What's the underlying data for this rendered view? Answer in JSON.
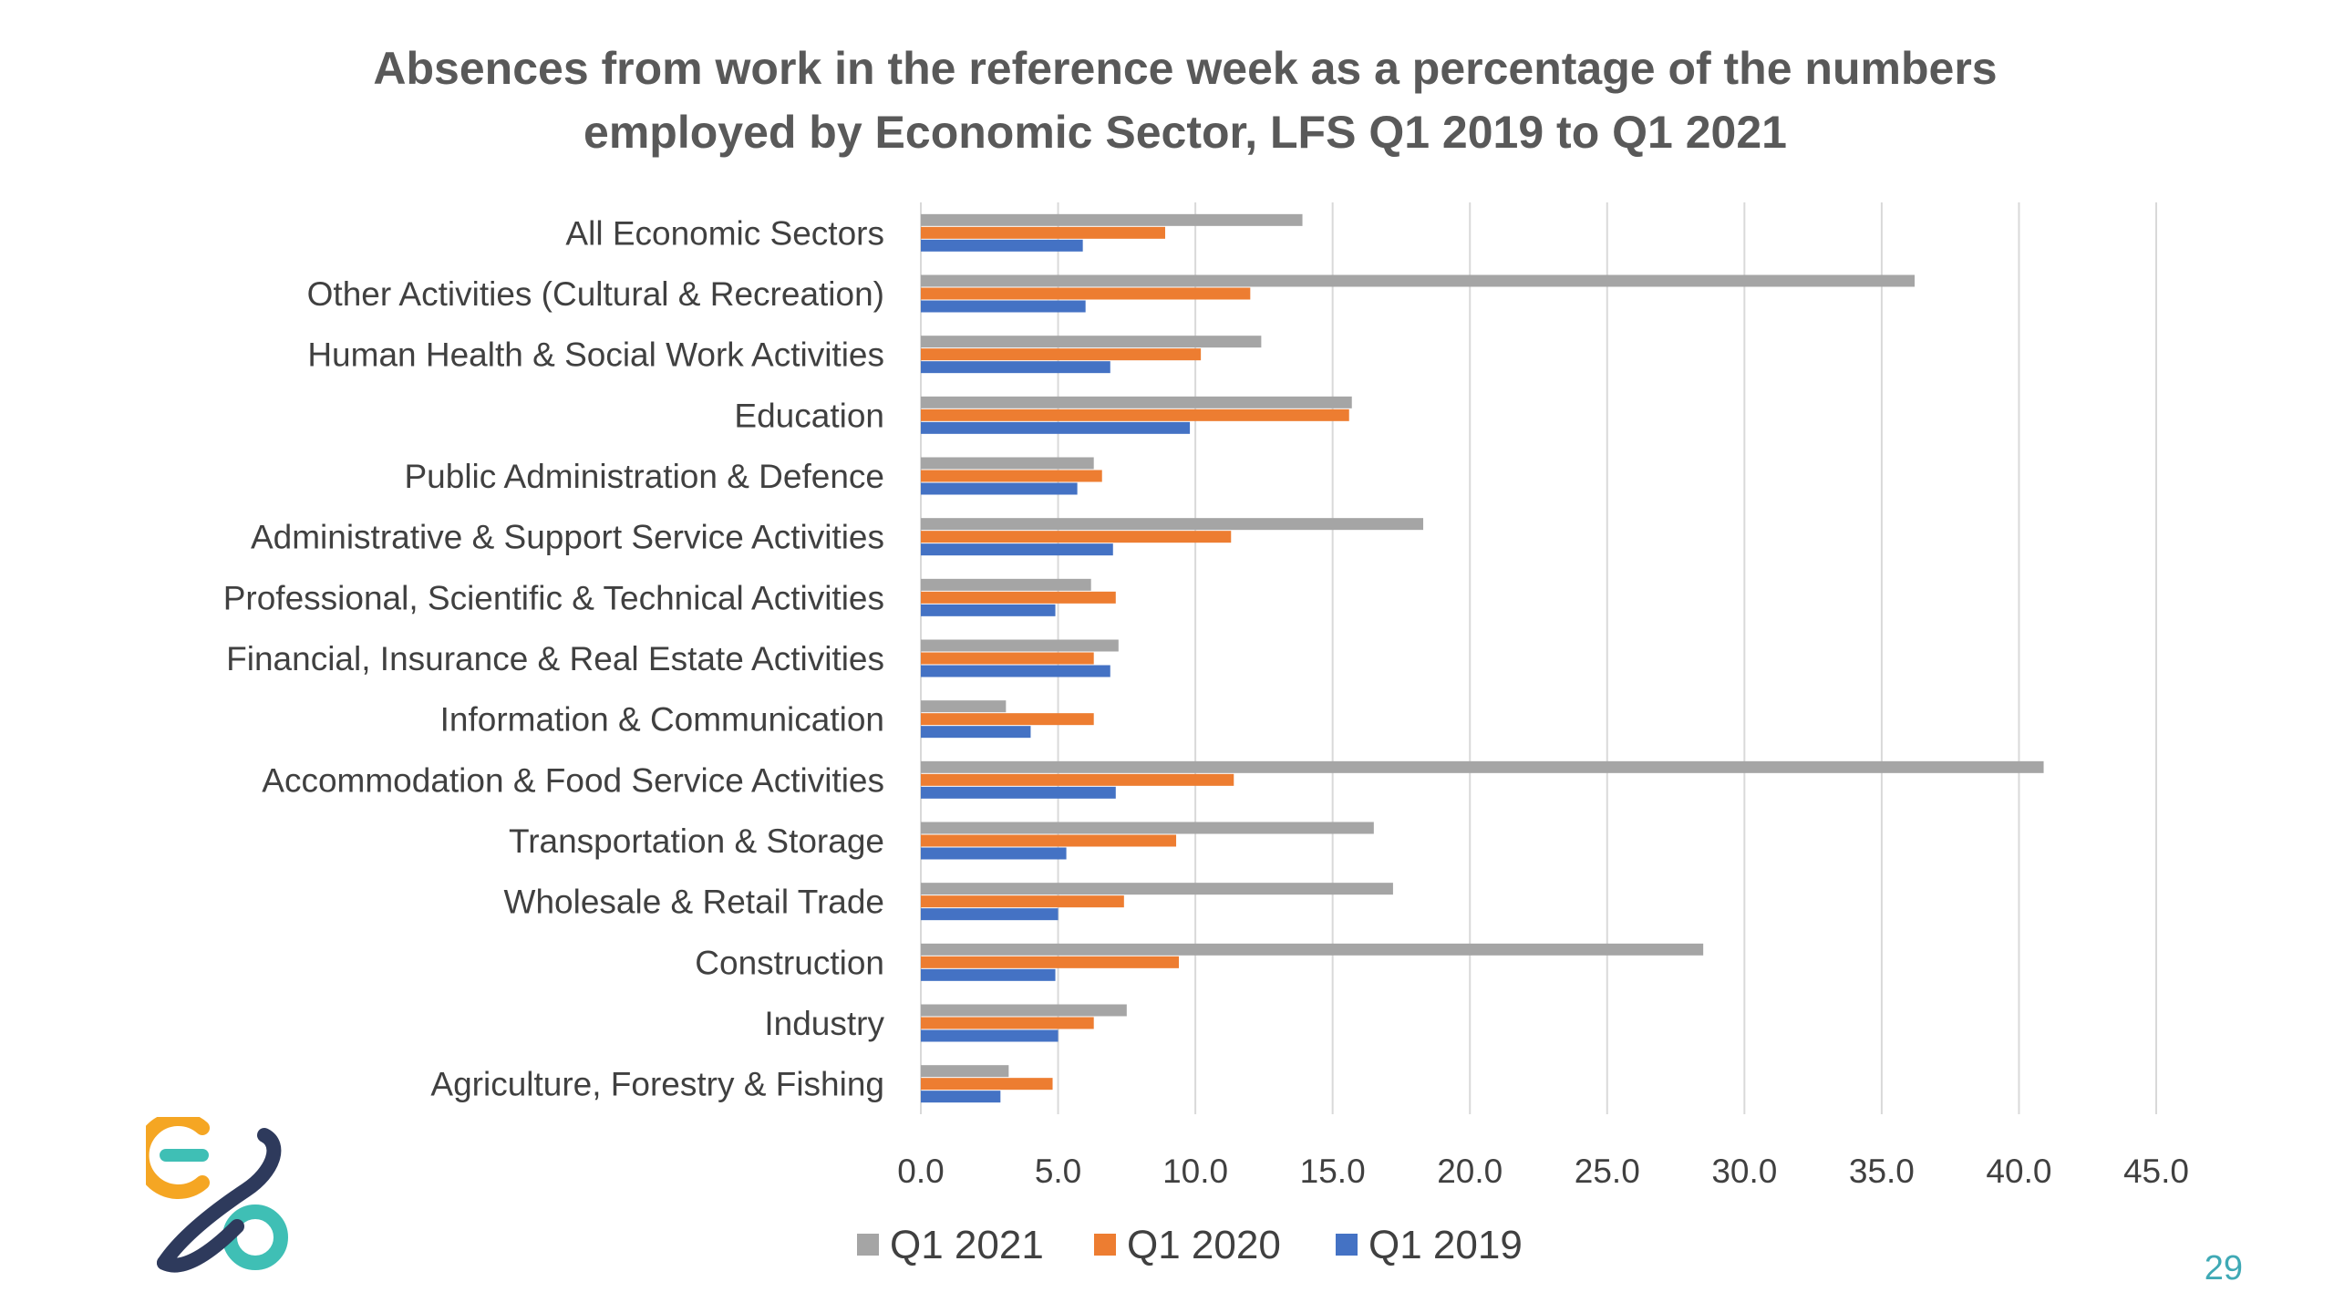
{
  "chart_data": {
    "type": "bar",
    "orientation": "horizontal",
    "title": [
      "Absences from work in the reference week as a percentage of the numbers",
      "employed by Economic Sector, LFS Q1 2019 to Q1 2021"
    ],
    "categories": [
      "All Economic Sectors",
      "Other Activities (Cultural & Recreation)",
      "Human Health & Social Work Activities",
      "Education",
      "Public Administration & Defence",
      "Administrative & Support Service Activities",
      "Professional, Scientific & Technical Activities",
      "Financial, Insurance & Real Estate Activities",
      "Information & Communication",
      "Accommodation & Food Service Activities",
      "Transportation & Storage",
      "Wholesale & Retail Trade",
      "Construction",
      "Industry",
      "Agriculture, Forestry & Fishing"
    ],
    "series": [
      {
        "name": "Q1 2021",
        "color": "#a5a5a5",
        "values": [
          13.9,
          36.2,
          12.4,
          15.7,
          6.3,
          18.3,
          6.2,
          7.2,
          3.1,
          40.9,
          16.5,
          17.2,
          28.5,
          7.5,
          3.2
        ]
      },
      {
        "name": "Q1 2020",
        "color": "#ed7d31",
        "values": [
          8.9,
          12.0,
          10.2,
          15.6,
          6.6,
          11.3,
          7.1,
          6.3,
          6.3,
          11.4,
          9.3,
          7.4,
          9.4,
          6.3,
          4.8
        ]
      },
      {
        "name": "Q1 2019",
        "color": "#4472c4",
        "values": [
          5.9,
          6.0,
          6.9,
          9.8,
          5.7,
          7.0,
          4.9,
          6.9,
          4.0,
          7.1,
          5.3,
          5.0,
          4.9,
          5.0,
          2.9
        ]
      }
    ],
    "xlim": [
      0,
      45
    ],
    "x_ticks": [
      "0.0",
      "5.0",
      "10.0",
      "15.0",
      "20.0",
      "25.0",
      "30.0",
      "35.0",
      "40.0",
      "45.0"
    ],
    "x_tick_values": [
      0,
      5,
      10,
      15,
      20,
      25,
      30,
      35,
      40,
      45
    ],
    "grid": true,
    "legend_position": "bottom"
  },
  "slide": {
    "page_number": "29",
    "logo_icon": "organisation-logo-icon",
    "logo_colors": [
      "#f5a623",
      "#3fbfb5",
      "#2e3a5c"
    ]
  }
}
